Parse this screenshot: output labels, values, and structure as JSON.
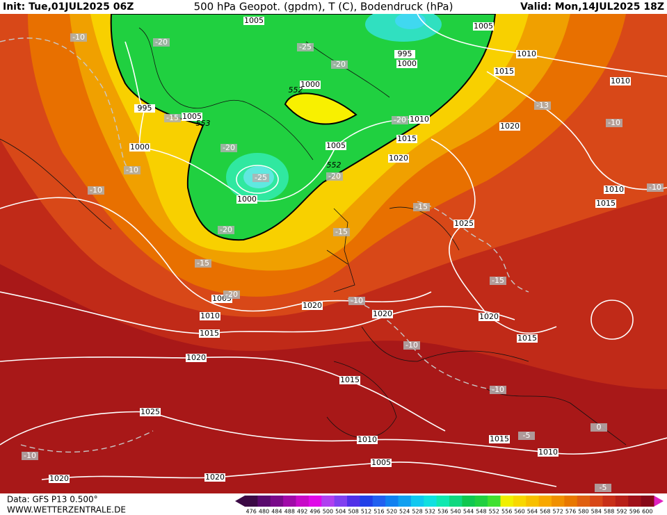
{
  "header": {
    "init": "Init: Tue,01JUL2025 06Z",
    "title": "500 hPa Geopot. (gpdm), T (C), Bodendruck (hPa)",
    "valid": "Valid: Mon,14JUL2025 18Z"
  },
  "footer": {
    "data": "Data: GFS P13 0.500°",
    "site": "WWW.WETTERZENTRALE.DE"
  },
  "colorbar": {
    "labels": [
      476,
      480,
      484,
      488,
      492,
      496,
      500,
      504,
      508,
      512,
      516,
      520,
      524,
      528,
      532,
      536,
      540,
      544,
      548,
      552,
      556,
      560,
      564,
      568,
      572,
      576,
      580,
      584,
      588,
      592,
      596,
      600
    ],
    "colors": [
      "#3b0a45",
      "#5a0a6e",
      "#7a0a8a",
      "#a00aa8",
      "#c80ac8",
      "#e00ae8",
      "#b040f0",
      "#8040f0",
      "#5030e8",
      "#2040e8",
      "#2060f0",
      "#1080f0",
      "#10a0f0",
      "#10c8f0",
      "#10e0e0",
      "#10e8b0",
      "#10d880",
      "#10c850",
      "#20d040",
      "#40e030",
      "#f0f000",
      "#f8d800",
      "#f8c000",
      "#f8a800",
      "#f09000",
      "#e87800",
      "#e06010",
      "#d84818",
      "#c83018",
      "#b82018",
      "#a01018",
      "#880818"
    ]
  },
  "map": {
    "isobar_labels": [
      "1005",
      "1005",
      "995",
      "1000",
      "1010",
      "1015",
      "1010",
      "995",
      "1005",
      "1000",
      "552",
      "553",
      "1000",
      "1005",
      "1010",
      "1015",
      "1020",
      "552",
      "1020",
      "1000",
      "1010",
      "1015",
      "1025",
      "1005",
      "1020",
      "1020",
      "1010",
      "1015",
      "1020",
      "1015",
      "1020",
      "1015",
      "1025",
      "1010",
      "1015",
      "1010",
      "1005",
      "1020",
      "1020"
    ],
    "temperature_labels": [
      "-10",
      "-20",
      "-25",
      "-20",
      "-15",
      "-13",
      "-10",
      "-20",
      "-20",
      "-20",
      "-25",
      "-10",
      "-10",
      "-15",
      "-10",
      "-20",
      "-15",
      "-15",
      "-20",
      "-10",
      "-15",
      "-10",
      "-10",
      "-5",
      "0",
      "-10",
      "-5"
    ]
  }
}
